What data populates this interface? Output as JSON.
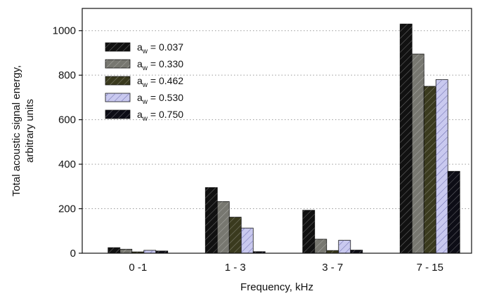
{
  "chart_data": {
    "type": "bar",
    "title": "",
    "xlabel": "Frequency, kHz",
    "ylabel_lines": [
      "Total acoustic signal energy,",
      "arbitrary units"
    ],
    "categories": [
      "0 -1",
      "1 - 3",
      "3 - 7",
      "7 - 15"
    ],
    "ylim": [
      0,
      1100
    ],
    "yticks": [
      0,
      200,
      400,
      600,
      800,
      1000
    ],
    "grid": "horizontal-dotted",
    "legend_position": "top-left",
    "series": [
      {
        "name": "0.037",
        "values": [
          25,
          295,
          193,
          1030
        ],
        "fill": "#111111",
        "pattern": "dark"
      },
      {
        "name": "0.330",
        "values": [
          18,
          232,
          63,
          895
        ],
        "fill": "#777770",
        "pattern": "dark"
      },
      {
        "name": "0.462",
        "values": [
          6,
          162,
          12,
          750
        ],
        "fill": "#3a3a1e",
        "pattern": "dark"
      },
      {
        "name": "0.530",
        "values": [
          13,
          113,
          58,
          780
        ],
        "fill": "#c9c9ef",
        "pattern": "light"
      },
      {
        "name": "0.750",
        "values": [
          10,
          7,
          14,
          368
        ],
        "fill": "#0d0d16",
        "pattern": "dark"
      }
    ],
    "legend_prefix": "a",
    "legend_subscript": "w",
    "legend_equals": " = "
  }
}
